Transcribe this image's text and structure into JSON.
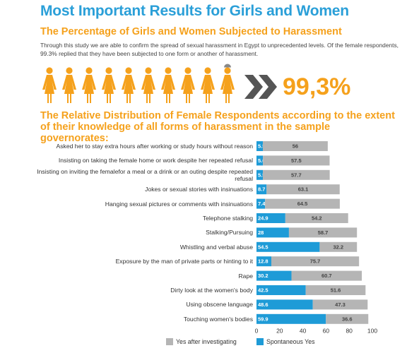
{
  "header": {
    "title": "Most Important Results for Girls and Women",
    "subtitle": "The Percentage of Girls and Women Subjected to Harassment",
    "paragraph": "Through this study we are able to confirm the spread of sexual harassment in Egypt to unprecedented levels. Of the female respondents, 99.3% replied that they have been subjected to one form or another of harassment.",
    "stat": "99,3%"
  },
  "chart_data": {
    "type": "bar",
    "orientation": "horizontal",
    "stacked": true,
    "title": "The Relative Distribution of Female Respondents according to the extent of their knowledge of all forms of harassment in the sample governorates:",
    "categories": [
      "Asked her to stay extra hours after working or study hours without reason",
      "Insisting on taking the female home or work despite her repeated refusal",
      "Insisting on inviting the femalefor a meal or a drink or an outing despite repeated refusal",
      "Jokes or sexual stories with insinuations",
      "Hanging sexual pictures or comments with insinuations",
      "Telephone stalking",
      "Stalking/Pursuing",
      "Whistling and verbal abuse",
      "Exposure by the man of private parts or hinting to it",
      "Rape",
      "Dirty look at the women's body",
      "Using obscene language",
      "Touching women's bodies"
    ],
    "series": [
      {
        "name": "Spontaneous Yes",
        "color": "#1e9bd7",
        "values": [
          5.5,
          5.6,
          5.5,
          8.7,
          7.4,
          24.9,
          28,
          54.5,
          12.8,
          30.2,
          42.5,
          48.6,
          59.9
        ]
      },
      {
        "name": "Yes after investigating",
        "color": "#b5b5b5",
        "values": [
          56,
          57.5,
          57.7,
          63.1,
          64.5,
          54.2,
          58.7,
          32.2,
          75.7,
          60.7,
          51.6,
          47.3,
          36.6
        ]
      }
    ],
    "xlim": [
      0,
      100
    ],
    "xticks": [
      0,
      20,
      40,
      60,
      80,
      100
    ],
    "grid": false
  }
}
